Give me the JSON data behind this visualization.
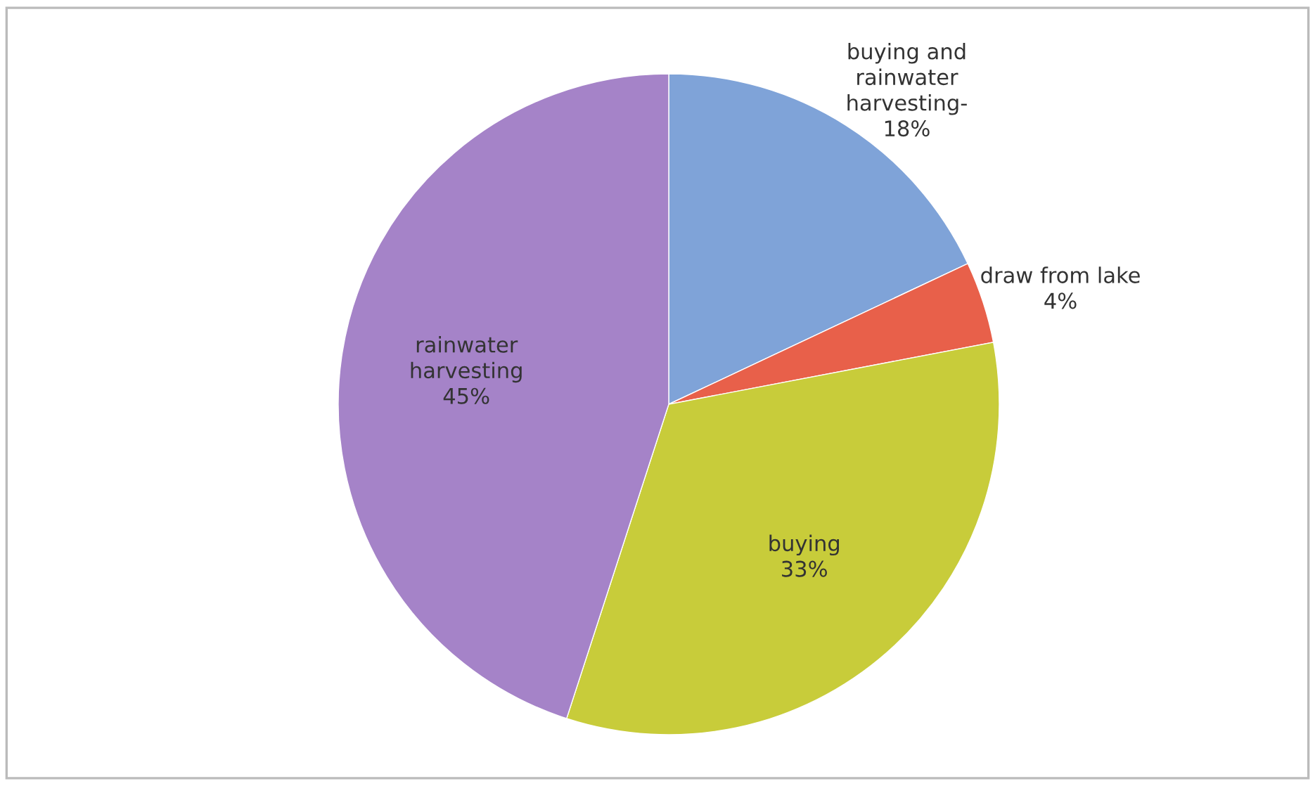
{
  "chart_data": {
    "type": "pie",
    "categories": [
      "buying and\nrainwater\nharvesting-",
      "draw from lake",
      "buying",
      "rainwater\nharvesting"
    ],
    "values": [
      18,
      4,
      33,
      45
    ],
    "colors": [
      "#7fa3d8",
      "#e8604a",
      "#c8cc3a",
      "#a583c8"
    ],
    "value_labels": [
      "18%",
      "4%",
      "33%",
      "45%"
    ],
    "legend": false
  }
}
